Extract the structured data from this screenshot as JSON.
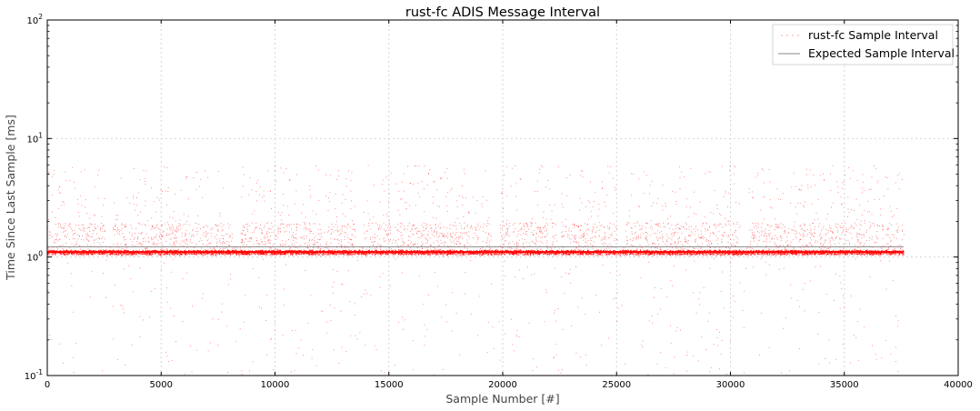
{
  "chart_data": {
    "type": "scatter",
    "title": "rust-fc ADIS Message Interval",
    "xlabel": "Sample Number [#]",
    "ylabel": "Time Since Last Sample [ms]",
    "xlim": [
      0,
      40000
    ],
    "ylim": [
      0.1,
      100
    ],
    "yscale": "log",
    "grid": true,
    "legend_position": "top-right",
    "x_ticks": [
      0,
      5000,
      10000,
      15000,
      20000,
      25000,
      30000,
      35000,
      40000
    ],
    "x_tick_labels": [
      "0",
      "5000",
      "10000",
      "15000",
      "20000",
      "25000",
      "30000",
      "35000",
      "40000"
    ],
    "y_ticks": [
      0.1,
      1,
      10,
      100
    ],
    "y_tick_labels": [
      {
        "base": "10",
        "exp": "-1"
      },
      {
        "base": "10",
        "exp": "0"
      },
      {
        "base": "10",
        "exp": "1"
      },
      {
        "base": "10",
        "exp": "2"
      }
    ],
    "series": [
      {
        "name": "rust-fc Sample Interval",
        "kind": "points",
        "color": "#ff0000",
        "x_range": [
          0,
          37600
        ],
        "typical_value": 1.1,
        "spread_range": [
          0.1,
          6.0
        ],
        "gaps_x": [
          2700,
          8300,
          13700,
          19700,
          25200,
          30600
        ]
      },
      {
        "name": "Expected Sample Interval",
        "kind": "line",
        "color": "#888888",
        "x": [
          0,
          37600
        ],
        "y": [
          1.22,
          1.22
        ]
      }
    ]
  }
}
